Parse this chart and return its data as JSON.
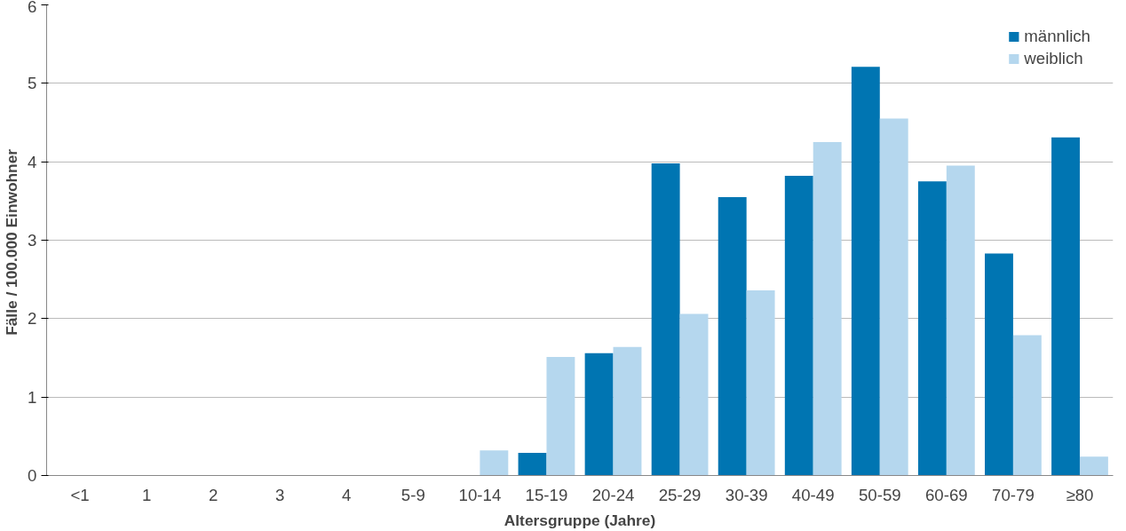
{
  "chart_data": {
    "type": "bar",
    "xlabel": "Altersgruppe (Jahre)",
    "ylabel": "Fälle  / 100.000 Einwohner",
    "categories": [
      "<1",
      "1",
      "2",
      "3",
      "4",
      "5-9",
      "10-14",
      "15-19",
      "20-24",
      "25-29",
      "30-39",
      "40-49",
      "50-59",
      "60-69",
      "70-79",
      "≥80"
    ],
    "series": [
      {
        "name": "männlich",
        "color": "#0075b2",
        "values": [
          0,
          0,
          0,
          0,
          0,
          0,
          0,
          0.29,
          1.56,
          3.98,
          3.55,
          3.82,
          5.21,
          3.75,
          2.83,
          4.31
        ]
      },
      {
        "name": "weiblich",
        "color": "#b5d7ee",
        "values": [
          0,
          0,
          0,
          0,
          0,
          0,
          0.32,
          1.51,
          1.64,
          2.06,
          2.36,
          4.25,
          4.55,
          3.95,
          1.79,
          0.24
        ]
      }
    ],
    "ylim": [
      0,
      6
    ],
    "yticks": [
      0,
      1,
      2,
      3,
      4,
      5,
      6
    ],
    "grid": "y",
    "legend": "top right"
  }
}
